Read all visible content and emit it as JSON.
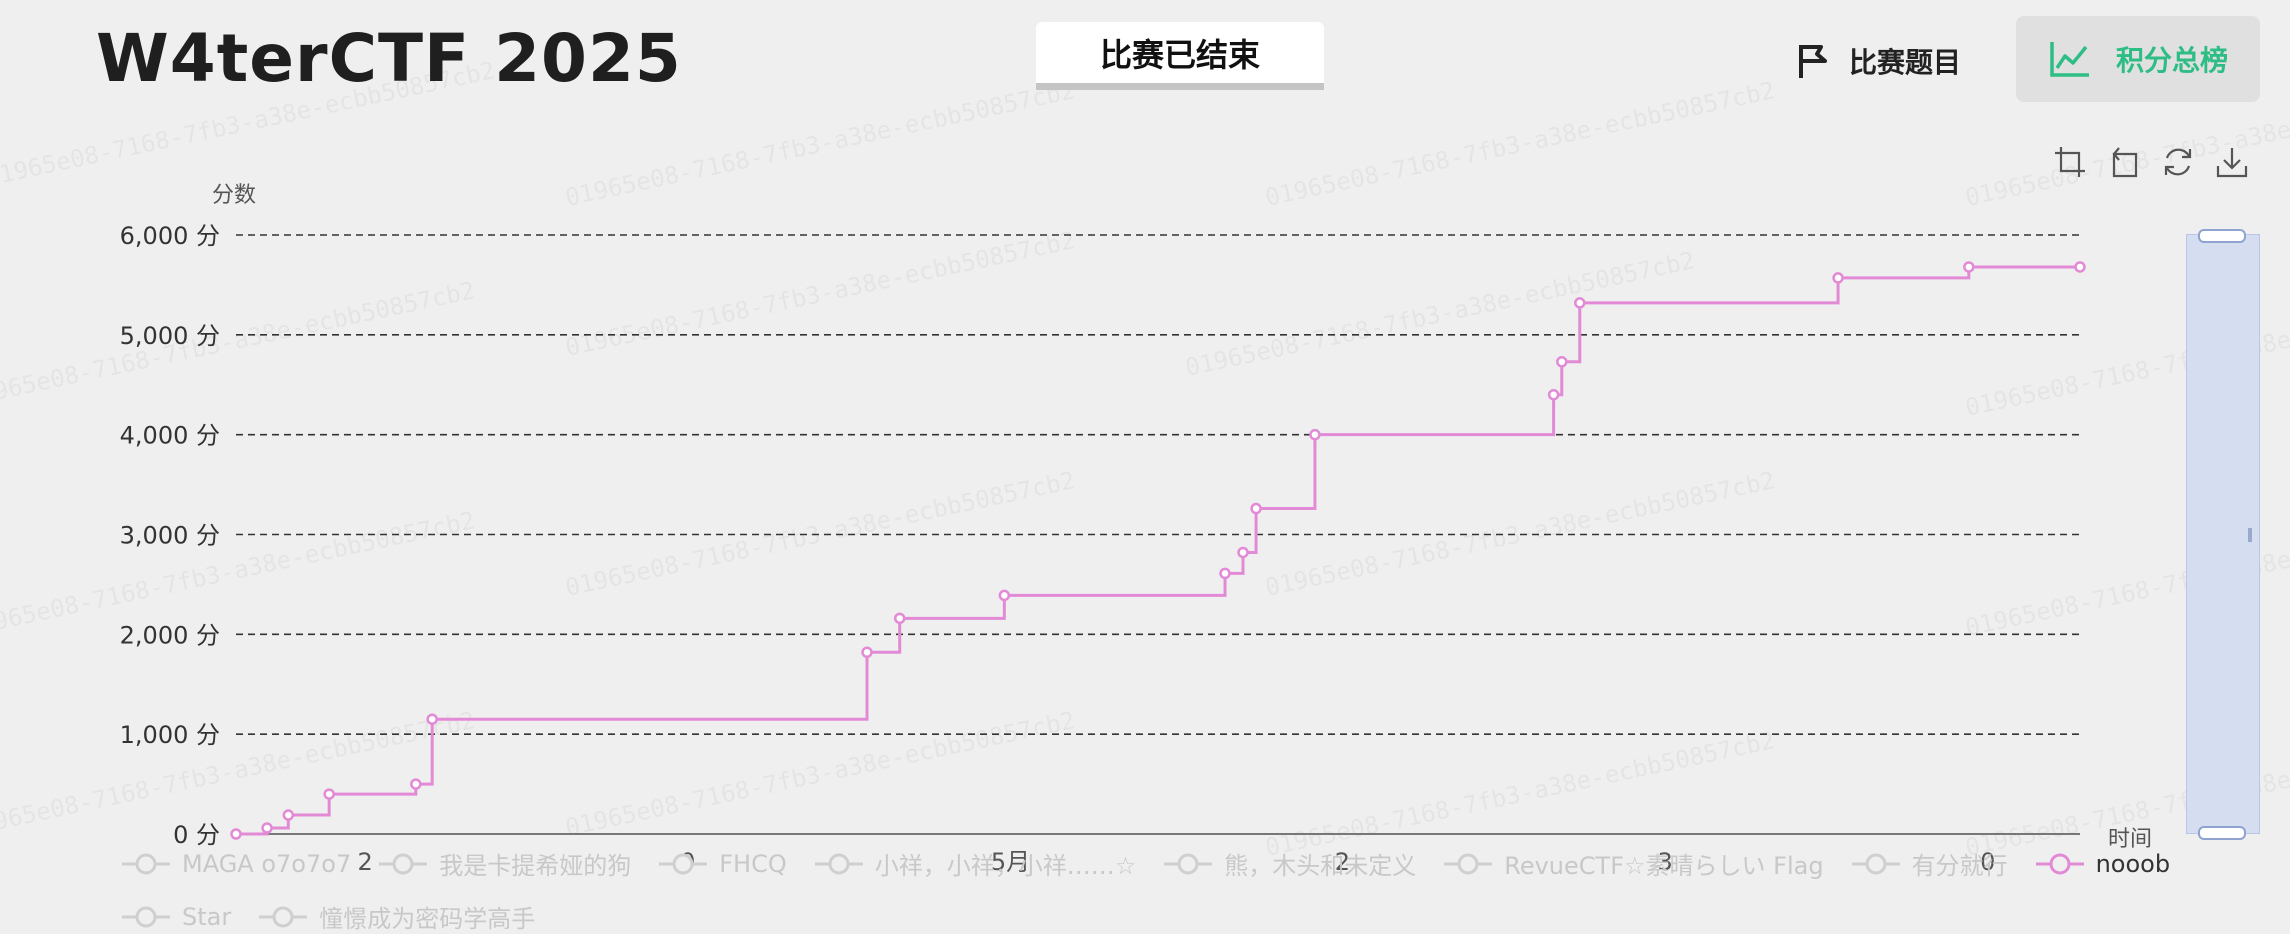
{
  "header": {
    "title": "W4terCTF 2025",
    "status_tab": "比赛已结束",
    "nav_challenges": "比赛题目",
    "nav_scoreboard": "积分总榜"
  },
  "watermark_text": "01965e08-7168-7fb3-a38e-ecbb50857cb2",
  "colors": {
    "accent": "#2ebd85",
    "series": "#e38ad6",
    "slider": "#d5ddf0"
  },
  "toolbox": {
    "icons": [
      "zoom-select-icon",
      "zoom-reset-icon",
      "restore-icon",
      "download-icon"
    ]
  },
  "chart_data": {
    "type": "line",
    "step": true,
    "ylabel": "分数",
    "xlabel": "时间",
    "ylim": [
      0,
      6000
    ],
    "yticks": [
      "0 分",
      "1,000 分",
      "2,000 分",
      "3,000 分",
      "4,000 分",
      "5,000 分",
      "6,000 分"
    ],
    "xticks": [
      {
        "label": "2",
        "t": 0.07
      },
      {
        "label": "0",
        "t": 0.245
      },
      {
        "label": "5月",
        "t": 0.42
      },
      {
        "label": "2",
        "t": 0.6
      },
      {
        "label": "3",
        "t": 0.775
      },
      {
        "label": "0",
        "t": 0.95
      }
    ],
    "grid": true,
    "series": [
      {
        "name": "nooob",
        "points": [
          [
            0.0,
            0
          ],
          [
            0.019,
            60
          ],
          [
            0.032,
            190
          ],
          [
            0.057,
            400
          ],
          [
            0.11,
            500
          ],
          [
            0.12,
            1150
          ],
          [
            0.386,
            1820
          ],
          [
            0.406,
            2160
          ],
          [
            0.47,
            2390
          ],
          [
            0.605,
            2610
          ],
          [
            0.616,
            2820
          ],
          [
            0.624,
            3260
          ],
          [
            0.66,
            4000
          ],
          [
            0.806,
            4400
          ],
          [
            0.811,
            4730
          ],
          [
            0.822,
            5320
          ],
          [
            0.98,
            5570
          ],
          [
            1.06,
            5680
          ],
          [
            1.128,
            5680
          ]
        ]
      }
    ]
  },
  "legend": {
    "items": [
      {
        "label": "MAGA o7o7o7",
        "active": false
      },
      {
        "label": "我是卡提希娅的狗",
        "active": false
      },
      {
        "label": "FHCQ",
        "active": false
      },
      {
        "label": "小祥，小祥，小祥……☆",
        "active": false
      },
      {
        "label": "熊，木头和未定义",
        "active": false
      },
      {
        "label": "RevueCTF☆素晴らしい Flag",
        "active": false
      },
      {
        "label": "有分就行",
        "active": false
      },
      {
        "label": "nooob",
        "active": true
      },
      {
        "label": "Star",
        "active": false
      },
      {
        "label": "憧憬成为密码学高手",
        "active": false
      }
    ]
  }
}
